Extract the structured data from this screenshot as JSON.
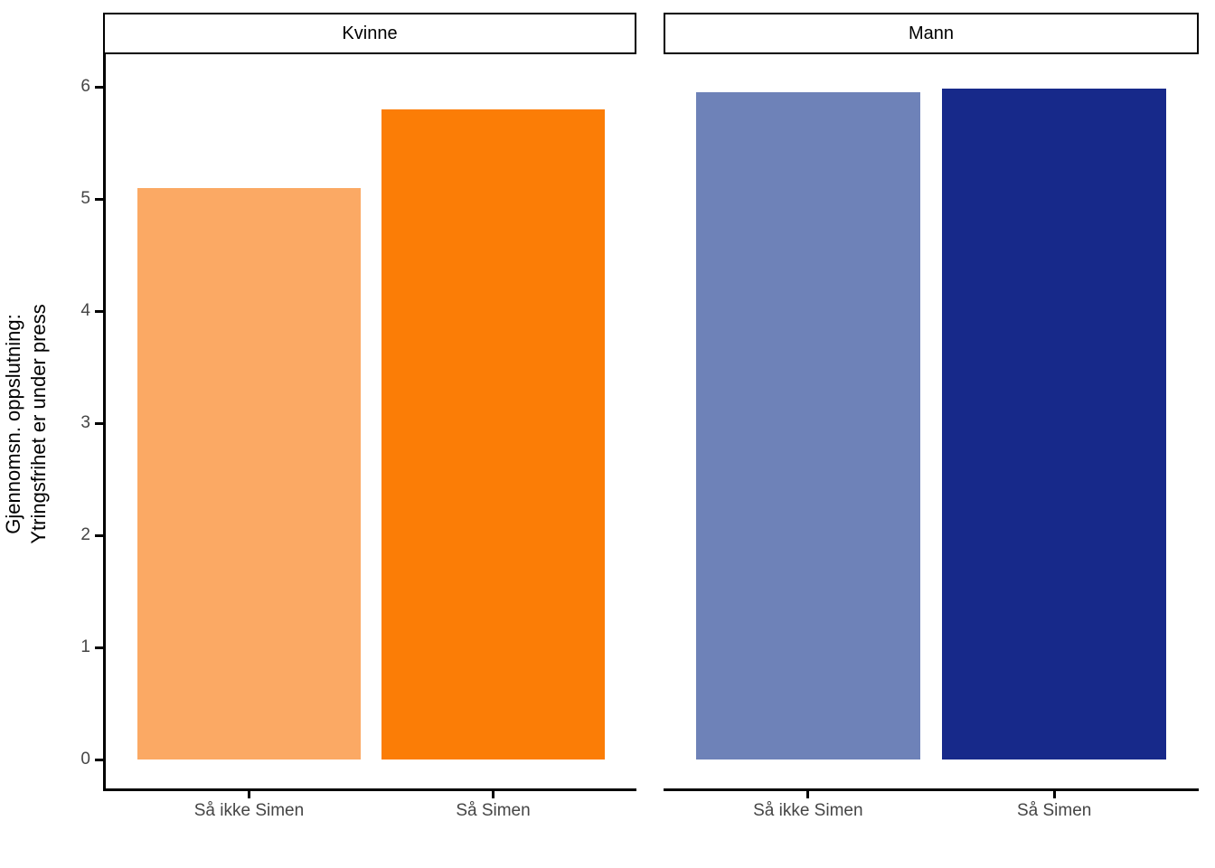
{
  "chart_data": {
    "type": "bar",
    "title": "",
    "ylabel_lines": [
      "Gjennomsn. oppslutning:",
      "Ytringsfrihet er under press"
    ],
    "yticks": [
      0,
      1,
      2,
      3,
      4,
      5,
      6
    ],
    "ylim": [
      0,
      6.3
    ],
    "legend": "none",
    "grid": "off",
    "facets": [
      {
        "label": "Kvinne",
        "categories": [
          "Så ikke Simen",
          "Så Simen"
        ],
        "values": [
          5.1,
          5.8
        ],
        "colors": [
          "#FBA964",
          "#FB7D06"
        ]
      },
      {
        "label": "Mann",
        "categories": [
          "Så ikke Simen",
          "Så Simen"
        ],
        "values": [
          5.95,
          5.98
        ],
        "colors": [
          "#6E82B8",
          "#17298A"
        ]
      }
    ]
  },
  "style_colors": {
    "axis_line": "#000000",
    "axis_text": "#454545",
    "strip_background": "#FFFFFF",
    "strip_border": "#000000",
    "panel_background": "#FFFFFF"
  }
}
